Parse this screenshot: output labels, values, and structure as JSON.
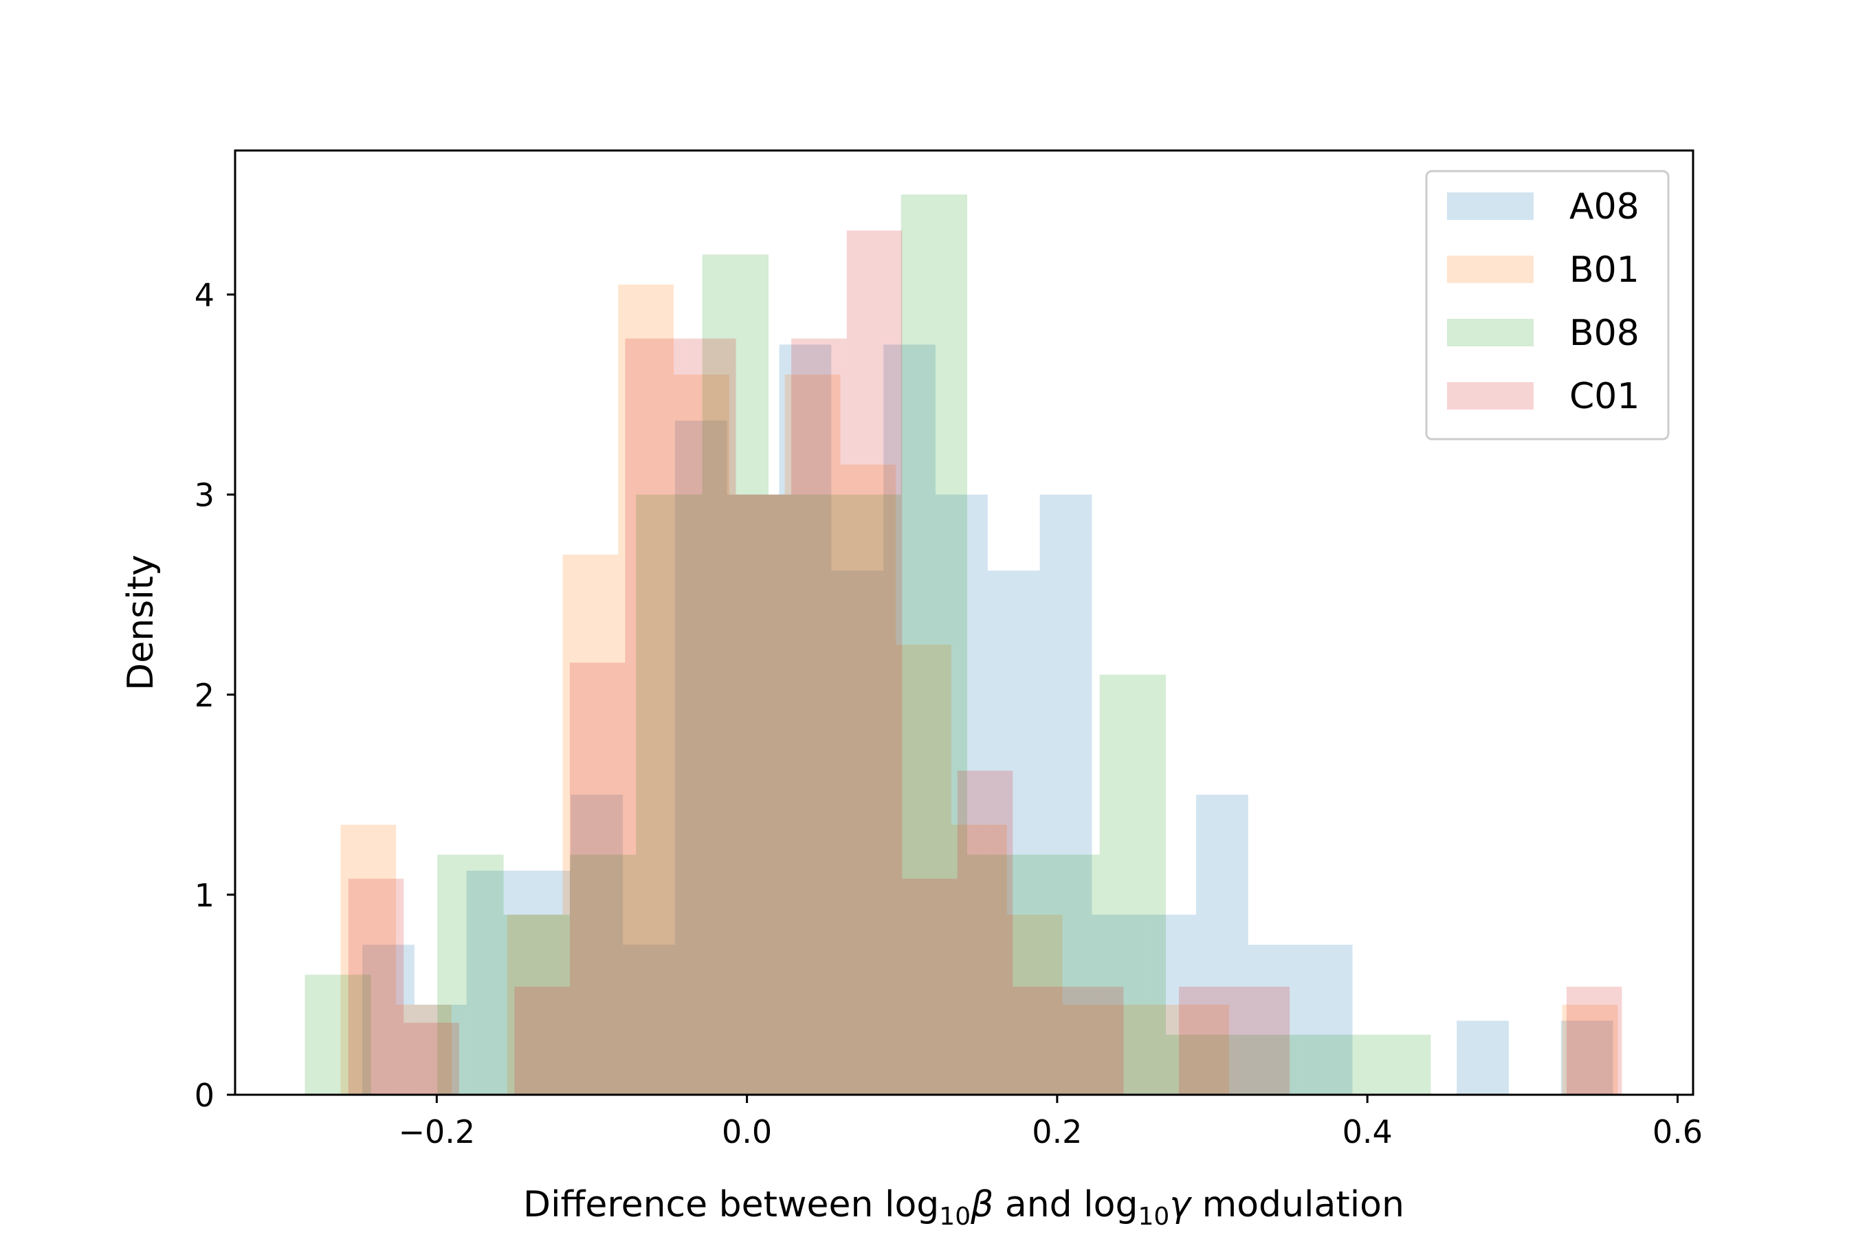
{
  "chart_data": {
    "type": "bar",
    "xlabel_parts": {
      "pre": "Difference between log",
      "sub1": "10",
      "sym1": "β",
      "mid": " and log",
      "sub2": "10",
      "sym2": "γ",
      "post": " modulation"
    },
    "ylabel": "Density",
    "xlim": [
      -0.33,
      0.61
    ],
    "ylim": [
      0,
      4.72
    ],
    "xticks": [
      -0.2,
      0.0,
      0.2,
      0.4,
      0.6
    ],
    "xtick_labels": [
      "−0.2",
      "0.0",
      "0.2",
      "0.4",
      "0.6"
    ],
    "yticks": [
      0,
      1,
      2,
      3,
      4
    ],
    "ytick_labels": [
      "0",
      "1",
      "2",
      "3",
      "4"
    ],
    "grid": false,
    "legend_position": "top-right",
    "opacity": 0.2,
    "series": [
      {
        "name": "A08",
        "color": "#1f77b4",
        "bin_start": -0.248,
        "bin_width": 0.0336,
        "values": [
          0.75,
          0.45,
          1.12,
          1.12,
          1.5,
          0.75,
          3.37,
          3.0,
          3.75,
          2.62,
          3.75,
          3.0,
          2.62,
          3.0,
          0.9,
          0.9,
          1.5,
          0.75,
          0.75,
          0.0,
          0.0,
          0.37,
          0.0,
          0.37
        ]
      },
      {
        "name": "B01",
        "color": "#ff7f0e",
        "bin_start": -0.262,
        "bin_width": 0.0358,
        "values": [
          1.35,
          0.45,
          0.0,
          0.9,
          2.7,
          4.05,
          3.6,
          3.0,
          3.6,
          3.15,
          2.25,
          1.35,
          0.9,
          0.45,
          0.45,
          0.45,
          0.0,
          0.0,
          0.0,
          0.0,
          0.0,
          0.0,
          0.45
        ]
      },
      {
        "name": "B08",
        "color": "#2ca02c",
        "bin_start": -0.285,
        "bin_width": 0.0427,
        "values": [
          0.6,
          0.0,
          1.2,
          0.9,
          1.2,
          3.0,
          4.2,
          3.0,
          3.0,
          4.5,
          1.2,
          1.2,
          2.1,
          0.3,
          0.3,
          0.3,
          0.3,
          0.0,
          0.0,
          0.0,
          0.0,
          0.0,
          0.0,
          0.0,
          0.0,
          0.0,
          0.0,
          0.0,
          0.0,
          0.0,
          0.3
        ]
      },
      {
        "name": "C01",
        "color": "#d62728",
        "bin_start": -0.257,
        "bin_width": 0.0357,
        "values": [
          1.08,
          0.36,
          0.0,
          0.54,
          2.16,
          3.78,
          3.78,
          3.0,
          3.78,
          4.32,
          1.08,
          1.62,
          0.54,
          0.54,
          0.0,
          0.54,
          0.54,
          0.0,
          0.0,
          0.0,
          0.0,
          0.0,
          0.54
        ]
      }
    ]
  }
}
